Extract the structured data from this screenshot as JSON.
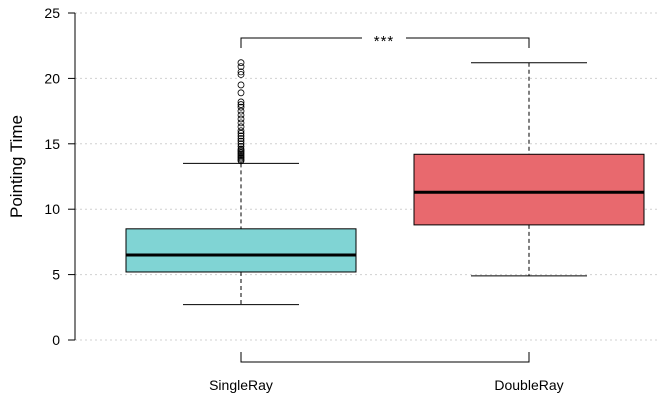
{
  "chart_data": {
    "type": "box",
    "ylabel": "Pointing Time",
    "ylim": [
      0,
      25
    ],
    "yticks": [
      0,
      5,
      10,
      15,
      20,
      25
    ],
    "grid": true,
    "categories": [
      "SingleRay",
      "DoubleRay"
    ],
    "boxes": [
      {
        "label": "SingleRay",
        "color": "#80d4d4",
        "whisker_low": 2.7,
        "q1": 5.2,
        "median": 6.5,
        "q3": 8.5,
        "whisker_high": 13.5,
        "outliers": [
          13.7,
          13.8,
          13.9,
          14.0,
          14.1,
          14.2,
          14.3,
          14.4,
          14.5,
          14.6,
          14.8,
          15.0,
          15.2,
          15.4,
          15.6,
          15.8,
          16.0,
          16.3,
          16.6,
          16.9,
          17.2,
          17.5,
          17.8,
          18.0,
          18.2,
          18.9,
          19.5,
          20.3,
          20.5,
          20.9,
          21.2
        ]
      },
      {
        "label": "DoubleRay",
        "color": "#e8696e",
        "whisker_low": 4.9,
        "q1": 8.8,
        "median": 11.3,
        "q3": 14.2,
        "whisker_high": 21.2,
        "outliers": []
      }
    ],
    "annotation": {
      "text": "***",
      "between": [
        "SingleRay",
        "DoubleRay"
      ]
    }
  }
}
